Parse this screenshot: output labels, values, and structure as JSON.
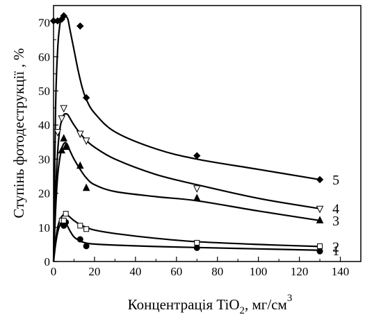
{
  "chart_data": {
    "type": "line",
    "title": "",
    "xlabel": "Концентрація TiO",
    "xlabel_sub": "2",
    "xlabel_unit": ", мг/см",
    "xlabel_sup": "3",
    "ylabel": "Ступінь фотодеструкції , %",
    "xlim": [
      0,
      150
    ],
    "ylim": [
      0,
      75
    ],
    "xticks": [
      0,
      20,
      40,
      60,
      80,
      100,
      120,
      140
    ],
    "yticks": [
      0,
      10,
      20,
      30,
      40,
      50,
      60,
      70
    ],
    "grid": false,
    "legend": "none",
    "series": [
      {
        "label": "1",
        "marker": "circle-filled",
        "color": "#000000",
        "points": [
          [
            5,
            10.5
          ],
          [
            6,
            11.5
          ],
          [
            13,
            6.5
          ],
          [
            16,
            4.5
          ],
          [
            70,
            4.0
          ],
          [
            130,
            3.0
          ]
        ],
        "curve": [
          [
            0,
            0
          ],
          [
            1,
            5
          ],
          [
            2,
            8.5
          ],
          [
            3,
            10.5
          ],
          [
            4,
            11.5
          ],
          [
            5,
            11.8
          ],
          [
            6,
            11.3
          ],
          [
            8,
            9
          ],
          [
            10,
            7.2
          ],
          [
            13,
            6
          ],
          [
            16,
            5.4
          ],
          [
            20,
            5.1
          ],
          [
            30,
            4.8
          ],
          [
            50,
            4.4
          ],
          [
            70,
            4.1
          ],
          [
            100,
            3.7
          ],
          [
            130,
            3.3
          ]
        ]
      },
      {
        "label": "2",
        "marker": "square-open",
        "color": "#000000",
        "points": [
          [
            4,
            12
          ],
          [
            5,
            12
          ],
          [
            6,
            14
          ],
          [
            13,
            10.5
          ],
          [
            16,
            9.5
          ],
          [
            70,
            5.5
          ],
          [
            130,
            4.5
          ]
        ],
        "curve": [
          [
            0,
            0
          ],
          [
            1,
            6
          ],
          [
            2,
            10
          ],
          [
            3,
            12
          ],
          [
            4,
            13.2
          ],
          [
            5,
            13.8
          ],
          [
            6,
            14
          ],
          [
            8,
            13
          ],
          [
            10,
            12
          ],
          [
            13,
            10.8
          ],
          [
            16,
            10
          ],
          [
            20,
            9.2
          ],
          [
            30,
            8.2
          ],
          [
            50,
            6.8
          ],
          [
            70,
            5.8
          ],
          [
            100,
            5
          ],
          [
            130,
            4.4
          ]
        ]
      },
      {
        "label": "3",
        "marker": "triangle-filled",
        "color": "#000000",
        "points": [
          [
            4,
            32.5
          ],
          [
            5,
            36
          ],
          [
            6,
            33.5
          ],
          [
            13,
            28
          ],
          [
            16,
            21.5
          ],
          [
            70,
            18.5
          ],
          [
            130,
            12
          ]
        ],
        "curve": [
          [
            0,
            0
          ],
          [
            1,
            15
          ],
          [
            2,
            25
          ],
          [
            3,
            30
          ],
          [
            4,
            33
          ],
          [
            5,
            34.5
          ],
          [
            6,
            34.8
          ],
          [
            7,
            34
          ],
          [
            8,
            32.5
          ],
          [
            10,
            30
          ],
          [
            13,
            27
          ],
          [
            16,
            24.5
          ],
          [
            20,
            22.5
          ],
          [
            30,
            20.5
          ],
          [
            50,
            19
          ],
          [
            70,
            17.8
          ],
          [
            100,
            14.8
          ],
          [
            130,
            12
          ]
        ]
      },
      {
        "label": "4",
        "marker": "triangle-open-down",
        "color": "#000000",
        "points": [
          [
            2,
            38
          ],
          [
            4,
            42
          ],
          [
            5,
            45
          ],
          [
            13,
            37.5
          ],
          [
            16,
            35.5
          ],
          [
            70,
            21.5
          ],
          [
            130,
            15.5
          ]
        ],
        "curve": [
          [
            0,
            0
          ],
          [
            1,
            20
          ],
          [
            2,
            32
          ],
          [
            3,
            38.5
          ],
          [
            4,
            41.5
          ],
          [
            5,
            43
          ],
          [
            6,
            43.3
          ],
          [
            7,
            43
          ],
          [
            8,
            42
          ],
          [
            10,
            40
          ],
          [
            13,
            37.5
          ],
          [
            16,
            35.5
          ],
          [
            20,
            33.5
          ],
          [
            30,
            30
          ],
          [
            50,
            25.5
          ],
          [
            70,
            22.5
          ],
          [
            100,
            18.5
          ],
          [
            130,
            15.5
          ]
        ]
      },
      {
        "label": "5",
        "marker": "diamond-filled",
        "color": "#000000",
        "points": [
          [
            0,
            70.5
          ],
          [
            2,
            70.5
          ],
          [
            4,
            71
          ],
          [
            5,
            72
          ],
          [
            13,
            69
          ],
          [
            16,
            48
          ],
          [
            70,
            31
          ],
          [
            130,
            24
          ]
        ],
        "curve": [
          [
            0,
            0
          ],
          [
            1,
            45
          ],
          [
            2,
            62
          ],
          [
            3,
            69
          ],
          [
            4,
            71.5
          ],
          [
            5,
            72
          ],
          [
            6,
            71.8
          ],
          [
            7,
            71
          ],
          [
            8,
            68
          ],
          [
            10,
            62
          ],
          [
            12,
            56
          ],
          [
            14,
            51
          ],
          [
            16,
            47.5
          ],
          [
            20,
            43.5
          ],
          [
            30,
            38
          ],
          [
            50,
            33
          ],
          [
            70,
            30
          ],
          [
            100,
            27
          ],
          [
            130,
            24
          ]
        ]
      }
    ]
  }
}
